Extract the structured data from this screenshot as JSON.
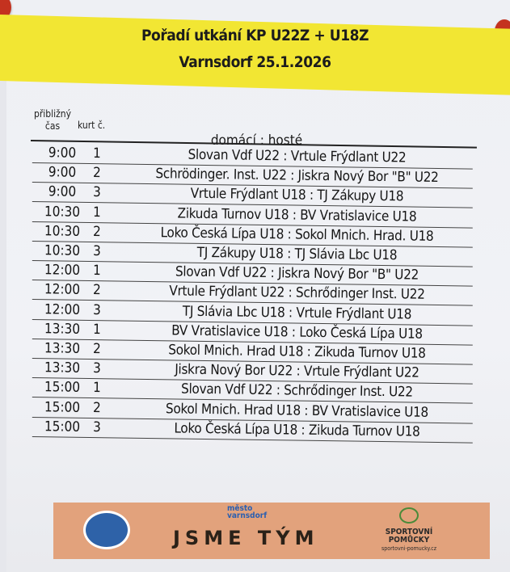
{
  "header": {
    "line1": "Pořadí utkání KP U22Z + U18Z",
    "line2": "Varnsdorf 25.1.2026"
  },
  "columns": {
    "time": "přibližný čas",
    "court": "kurt č.",
    "match": "domácí : hosté"
  },
  "rows": [
    {
      "time": "9:00",
      "court": "1",
      "match": "Slovan Vdf U22 : Vrtule Frýdlant U22"
    },
    {
      "time": "9:00",
      "court": "2",
      "match": "Schrödinger. Inst. U22 : Jiskra Nový Bor \"B\" U22"
    },
    {
      "time": "9:00",
      "court": "3",
      "match": "Vrtule Frýdlant U18 : TJ Zákupy U18"
    },
    {
      "time": "10:30",
      "court": "1",
      "match": "Zikuda Turnov U18 : BV Vratislavice U18"
    },
    {
      "time": "10:30",
      "court": "2",
      "match": "Loko Česká Lípa U18 : Sokol Mnich. Hrad. U18"
    },
    {
      "time": "10:30",
      "court": "3",
      "match": "TJ Zákupy U18 : TJ Slávia Lbc U18"
    },
    {
      "time": "12:00",
      "court": "1",
      "match": "Slovan Vdf U22 : Jiskra Nový Bor \"B\" U22"
    },
    {
      "time": "12:00",
      "court": "2",
      "match": "Vrtule Frýdlant U22 : Schrődinger Inst. U22"
    },
    {
      "time": "12:00",
      "court": "3",
      "match": "TJ Slávia Lbc U18 : Vrtule Frýdlant U18"
    },
    {
      "time": "13:30",
      "court": "1",
      "match": "BV Vratislavice U18 : Loko Česká Lípa U18"
    },
    {
      "time": "13:30",
      "court": "2",
      "match": "Sokol Mnich. Hrad U18 : Zikuda Turnov U18"
    },
    {
      "time": "13:30",
      "court": "3",
      "match": "Jiskra Nový Bor U22 : Vrtule Frýdlant U22"
    },
    {
      "time": "15:00",
      "court": "1",
      "match": "Slovan Vdf U22 : Schrődinger Inst. U22"
    },
    {
      "time": "15:00",
      "court": "2",
      "match": "Sokol Mnich. Hrad U18 : BV Vratislavice U18"
    },
    {
      "time": "15:00",
      "court": "3",
      "match": "Loko Česká Lípa U18 : Zikuda Turnov U18"
    }
  ],
  "footer": {
    "slogan": "JSME TÝM",
    "city_logo_small": "město",
    "city_logo": "varnsdorf",
    "club_logo": "TJ SLOVAN VARNSDORF VOLEJBAL",
    "sponsor_line1": "SPORTOVNÍ",
    "sponsor_line2": "POMŮCKY",
    "sponsor_url": "sportovni-pomucky.cz"
  },
  "colors": {
    "band": "#f2e633",
    "footer": "#e2a27c",
    "pin": "#c4321f"
  }
}
